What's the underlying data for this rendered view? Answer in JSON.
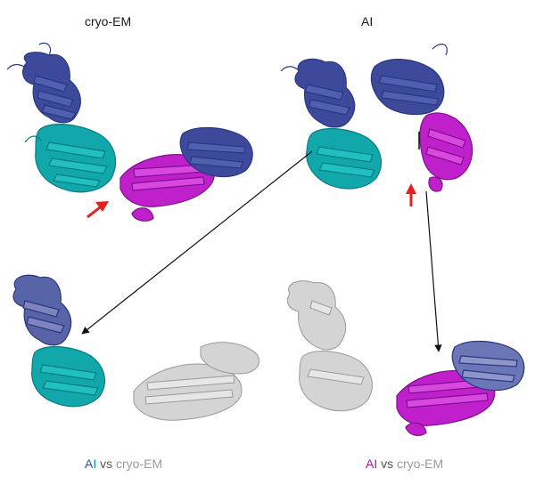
{
  "titles": {
    "left": "cryo-EM",
    "right": "AI"
  },
  "captions": {
    "left": {
      "model_a": "A",
      "model_b": "I",
      "vs": "vs",
      "ref": "cryo-EM"
    },
    "right": {
      "model_a": "A",
      "model_b": "I",
      "vs": "vs",
      "ref": "cryo-EM"
    }
  },
  "colors": {
    "domain_navy": "#3d4a9c",
    "domain_teal": "#0fa5a8",
    "domain_magenta": "#b51bc4",
    "reference_gray": "#c4c4c4",
    "highlight_arrow": "#e3201b",
    "connector_arrow": "#111111"
  }
}
